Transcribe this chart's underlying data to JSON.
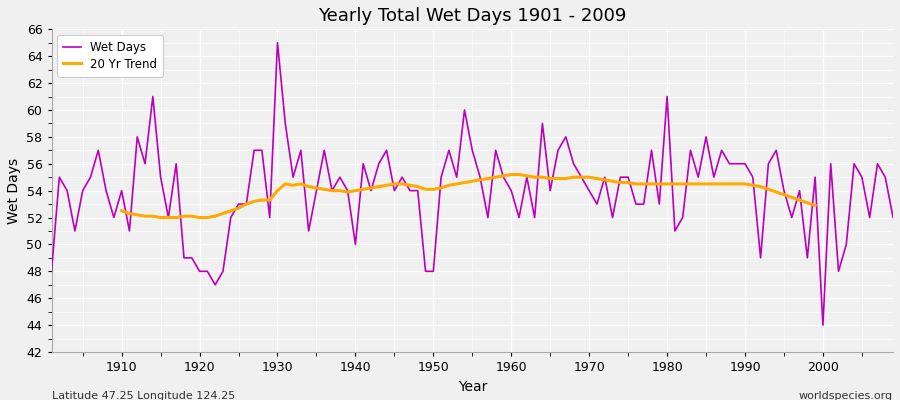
{
  "title": "Yearly Total Wet Days 1901 - 2009",
  "xlabel": "Year",
  "ylabel": "Wet Days",
  "subtitle": "Latitude 47.25 Longitude 124.25",
  "watermark": "worldspecies.org",
  "legend_labels": [
    "Wet Days",
    "20 Yr Trend"
  ],
  "wet_days_color": "#bb00bb",
  "trend_color": "#ffaa00",
  "plot_bg_color": "#f0f0f0",
  "fig_bg_color": "#f0f0f0",
  "grid_color": "#ffffff",
  "ylim": [
    42,
    66
  ],
  "yticks": [
    42,
    44,
    46,
    48,
    50,
    52,
    54,
    56,
    58,
    60,
    62,
    64,
    66
  ],
  "xlim": [
    1901,
    2009
  ],
  "xticks": [
    1910,
    1920,
    1930,
    1940,
    1950,
    1960,
    1970,
    1980,
    1990,
    2000
  ],
  "years": [
    1901,
    1902,
    1903,
    1904,
    1905,
    1906,
    1907,
    1908,
    1909,
    1910,
    1911,
    1912,
    1913,
    1914,
    1915,
    1916,
    1917,
    1918,
    1919,
    1920,
    1921,
    1922,
    1923,
    1924,
    1925,
    1926,
    1927,
    1928,
    1929,
    1930,
    1931,
    1932,
    1933,
    1934,
    1935,
    1936,
    1937,
    1938,
    1939,
    1940,
    1941,
    1942,
    1943,
    1944,
    1945,
    1946,
    1947,
    1948,
    1949,
    1950,
    1951,
    1952,
    1953,
    1954,
    1955,
    1956,
    1957,
    1958,
    1959,
    1960,
    1961,
    1962,
    1963,
    1964,
    1965,
    1966,
    1967,
    1968,
    1969,
    1970,
    1971,
    1972,
    1973,
    1974,
    1975,
    1976,
    1977,
    1978,
    1979,
    1980,
    1981,
    1982,
    1983,
    1984,
    1985,
    1986,
    1987,
    1988,
    1989,
    1990,
    1991,
    1992,
    1993,
    1994,
    1995,
    1996,
    1997,
    1998,
    1999,
    2000,
    2001,
    2002,
    2003,
    2004,
    2005,
    2006,
    2007,
    2008,
    2009
  ],
  "wet_days": [
    48,
    55,
    54,
    51,
    54,
    55,
    57,
    54,
    52,
    54,
    51,
    58,
    56,
    61,
    55,
    52,
    56,
    49,
    49,
    48,
    48,
    47,
    48,
    52,
    53,
    53,
    57,
    57,
    52,
    65,
    59,
    55,
    57,
    51,
    54,
    57,
    54,
    55,
    54,
    50,
    56,
    54,
    56,
    57,
    54,
    55,
    54,
    54,
    48,
    48,
    55,
    57,
    55,
    60,
    57,
    55,
    52,
    57,
    55,
    54,
    52,
    55,
    52,
    59,
    54,
    57,
    58,
    56,
    55,
    54,
    53,
    55,
    52,
    55,
    55,
    53,
    53,
    57,
    53,
    61,
    51,
    52,
    57,
    55,
    58,
    55,
    57,
    56,
    56,
    56,
    55,
    49,
    56,
    57,
    54,
    52,
    54,
    49,
    55,
    44,
    56,
    48,
    50,
    56,
    55,
    52,
    56,
    55,
    52
  ],
  "trend": [
    null,
    null,
    null,
    null,
    null,
    null,
    null,
    null,
    null,
    52.5,
    52.3,
    52.2,
    52.1,
    52.1,
    52.0,
    52.0,
    52.0,
    52.1,
    52.1,
    52.0,
    52.0,
    52.1,
    52.3,
    52.5,
    52.7,
    53.0,
    53.2,
    53.3,
    53.3,
    54.0,
    54.5,
    54.4,
    54.5,
    54.3,
    54.2,
    54.1,
    54.0,
    54.0,
    53.9,
    54.0,
    54.1,
    54.2,
    54.3,
    54.4,
    54.5,
    54.5,
    54.4,
    54.3,
    54.1,
    54.1,
    54.2,
    54.4,
    54.5,
    54.6,
    54.7,
    54.8,
    54.9,
    55.0,
    55.1,
    55.2,
    55.2,
    55.1,
    55.0,
    55.0,
    54.9,
    54.9,
    54.9,
    55.0,
    55.0,
    55.0,
    54.9,
    54.8,
    54.7,
    54.6,
    54.6,
    54.5,
    54.5,
    54.5,
    54.5,
    54.5,
    54.5,
    54.5,
    54.5,
    54.5,
    54.5,
    54.5,
    54.5,
    54.5,
    54.5,
    54.5,
    54.4,
    54.3,
    54.1,
    53.9,
    53.7,
    53.5,
    53.3,
    53.1,
    52.9
  ]
}
